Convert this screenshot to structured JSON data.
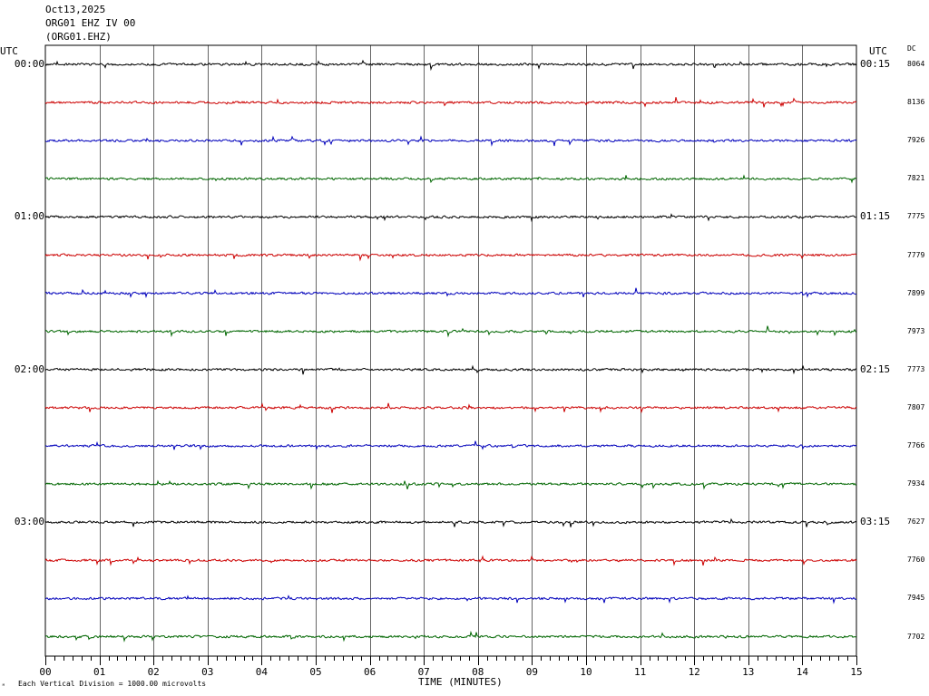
{
  "header": {
    "date": "Oct13,2025",
    "station": "ORG01 EHZ IV 00",
    "channel": "(ORG01.EHZ)"
  },
  "utc_left_label": "UTC",
  "utc_right_label": "UTC",
  "dc_label": "DC",
  "footer": {
    "scale_note": "Each Vertical Division = 1000.00 microvolts",
    "mark": "ᴹ"
  },
  "chart_data": {
    "type": "line",
    "title": "ORG01 EHZ IV 00",
    "xlabel": "TIME (MINUTES)",
    "ylabel": "",
    "xlim": [
      0,
      15
    ],
    "x_ticks": [
      "00",
      "01",
      "02",
      "03",
      "04",
      "05",
      "06",
      "07",
      "08",
      "09",
      "10",
      "11",
      "12",
      "13",
      "14",
      "15"
    ],
    "grid": true,
    "trace_colors": [
      "#000000",
      "#cc0000",
      "#0000bb",
      "#006600"
    ],
    "rows": [
      {
        "left_time": "00:00",
        "right_time": "00:15",
        "dc": "8064"
      },
      {
        "left_time": "",
        "right_time": "",
        "dc": "8136"
      },
      {
        "left_time": "",
        "right_time": "",
        "dc": "7926"
      },
      {
        "left_time": "",
        "right_time": "",
        "dc": "7821"
      },
      {
        "left_time": "01:00",
        "right_time": "01:15",
        "dc": "7775"
      },
      {
        "left_time": "",
        "right_time": "",
        "dc": "7779"
      },
      {
        "left_time": "",
        "right_time": "",
        "dc": "7899"
      },
      {
        "left_time": "",
        "right_time": "",
        "dc": "7973"
      },
      {
        "left_time": "02:00",
        "right_time": "02:15",
        "dc": "7773"
      },
      {
        "left_time": "",
        "right_time": "",
        "dc": "7807"
      },
      {
        "left_time": "",
        "right_time": "",
        "dc": "7766"
      },
      {
        "left_time": "",
        "right_time": "",
        "dc": "7934"
      },
      {
        "left_time": "03:00",
        "right_time": "03:15",
        "dc": "7627"
      },
      {
        "left_time": "",
        "right_time": "",
        "dc": "7760"
      },
      {
        "left_time": "",
        "right_time": "",
        "dc": "7945"
      },
      {
        "left_time": "",
        "right_time": "",
        "dc": "7702"
      }
    ]
  }
}
